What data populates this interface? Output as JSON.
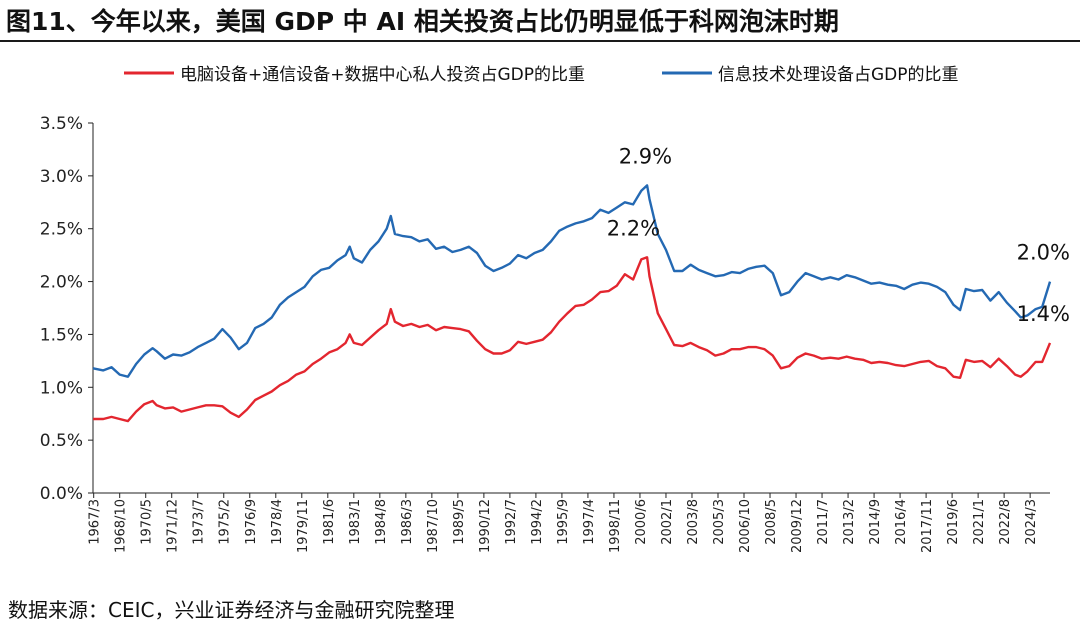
{
  "chart_data": {
    "type": "line",
    "title": "图11、今年以来，美国 GDP 中 AI 相关投资占比仍明显低于科网泡沫时期",
    "source": "数据来源：CEIC，兴业证券经济与金融研究院整理",
    "xlabel": "",
    "ylabel": "",
    "ylim": [
      0.0,
      3.5
    ],
    "yticks": [
      "0.0%",
      "0.5%",
      "1.0%",
      "1.5%",
      "2.0%",
      "2.5%",
      "3.0%",
      "3.5%"
    ],
    "ytick_values": [
      0,
      0.5,
      1.0,
      1.5,
      2.0,
      2.5,
      3.0,
      3.5
    ],
    "x_start": 1967.125,
    "x_end": 2025.375,
    "xticks": [
      "1967/3",
      "1968/10",
      "1970/5",
      "1971/12",
      "1973/7",
      "1975/2",
      "1976/9",
      "1978/4",
      "1979/11",
      "1981/6",
      "1983/1",
      "1984/8",
      "1986/3",
      "1987/10",
      "1989/5",
      "1990/12",
      "1992/7",
      "1994/2",
      "1995/9",
      "1997/4",
      "1998/11",
      "2000/6",
      "2002/1",
      "2003/8",
      "2005/3",
      "2006/10",
      "2008/5",
      "2009/12",
      "2011/7",
      "2013/2",
      "2014/9",
      "2016/4",
      "2017/11",
      "2019/6",
      "2021/1",
      "2022/8",
      "2024/3"
    ],
    "legend_position": "top",
    "grid": false,
    "series": [
      {
        "name": "电脑设备+通信设备+数据中心私人投资占GDP的比重",
        "color": "#e3262f",
        "points": [
          [
            1967.125,
            0.7
          ],
          [
            1967.75,
            0.7
          ],
          [
            1968.25,
            0.72
          ],
          [
            1968.75,
            0.7
          ],
          [
            1969.25,
            0.68
          ],
          [
            1969.75,
            0.77
          ],
          [
            1970.25,
            0.84
          ],
          [
            1970.75,
            0.87
          ],
          [
            1971.0,
            0.83
          ],
          [
            1971.5,
            0.8
          ],
          [
            1972.0,
            0.81
          ],
          [
            1972.5,
            0.77
          ],
          [
            1973.0,
            0.79
          ],
          [
            1973.5,
            0.81
          ],
          [
            1974.0,
            0.83
          ],
          [
            1974.5,
            0.83
          ],
          [
            1975.0,
            0.82
          ],
          [
            1975.5,
            0.76
          ],
          [
            1976.0,
            0.72
          ],
          [
            1976.5,
            0.79
          ],
          [
            1977.0,
            0.88
          ],
          [
            1977.5,
            0.92
          ],
          [
            1978.0,
            0.96
          ],
          [
            1978.5,
            1.02
          ],
          [
            1979.0,
            1.06
          ],
          [
            1979.5,
            1.12
          ],
          [
            1980.0,
            1.15
          ],
          [
            1980.5,
            1.22
          ],
          [
            1981.0,
            1.27
          ],
          [
            1981.5,
            1.33
          ],
          [
            1982.0,
            1.36
          ],
          [
            1982.5,
            1.42
          ],
          [
            1982.75,
            1.5
          ],
          [
            1983.0,
            1.42
          ],
          [
            1983.5,
            1.4
          ],
          [
            1984.0,
            1.47
          ],
          [
            1984.5,
            1.54
          ],
          [
            1985.0,
            1.6
          ],
          [
            1985.25,
            1.74
          ],
          [
            1985.5,
            1.62
          ],
          [
            1986.0,
            1.58
          ],
          [
            1986.5,
            1.6
          ],
          [
            1987.0,
            1.57
          ],
          [
            1987.5,
            1.59
          ],
          [
            1988.0,
            1.54
          ],
          [
            1988.5,
            1.57
          ],
          [
            1989.0,
            1.56
          ],
          [
            1989.5,
            1.55
          ],
          [
            1990.0,
            1.53
          ],
          [
            1990.5,
            1.44
          ],
          [
            1991.0,
            1.36
          ],
          [
            1991.5,
            1.32
          ],
          [
            1992.0,
            1.32
          ],
          [
            1992.5,
            1.35
          ],
          [
            1993.0,
            1.43
          ],
          [
            1993.5,
            1.41
          ],
          [
            1994.0,
            1.43
          ],
          [
            1994.5,
            1.45
          ],
          [
            1995.0,
            1.52
          ],
          [
            1995.5,
            1.62
          ],
          [
            1996.0,
            1.7
          ],
          [
            1996.5,
            1.77
          ],
          [
            1997.0,
            1.78
          ],
          [
            1997.5,
            1.83
          ],
          [
            1998.0,
            1.9
          ],
          [
            1998.5,
            1.91
          ],
          [
            1999.0,
            1.96
          ],
          [
            1999.5,
            2.07
          ],
          [
            2000.0,
            2.02
          ],
          [
            2000.5,
            2.21
          ],
          [
            2000.85,
            2.23
          ],
          [
            2001.0,
            2.05
          ],
          [
            2001.5,
            1.7
          ],
          [
            2002.0,
            1.55
          ],
          [
            2002.5,
            1.4
          ],
          [
            2003.0,
            1.39
          ],
          [
            2003.5,
            1.42
          ],
          [
            2004.0,
            1.38
          ],
          [
            2004.5,
            1.35
          ],
          [
            2005.0,
            1.3
          ],
          [
            2005.5,
            1.32
          ],
          [
            2006.0,
            1.36
          ],
          [
            2006.5,
            1.36
          ],
          [
            2007.0,
            1.38
          ],
          [
            2007.5,
            1.38
          ],
          [
            2008.0,
            1.36
          ],
          [
            2008.5,
            1.3
          ],
          [
            2009.0,
            1.18
          ],
          [
            2009.5,
            1.2
          ],
          [
            2010.0,
            1.28
          ],
          [
            2010.5,
            1.32
          ],
          [
            2011.0,
            1.3
          ],
          [
            2011.5,
            1.27
          ],
          [
            2012.0,
            1.28
          ],
          [
            2012.5,
            1.27
          ],
          [
            2013.0,
            1.29
          ],
          [
            2013.5,
            1.27
          ],
          [
            2014.0,
            1.26
          ],
          [
            2014.5,
            1.23
          ],
          [
            2015.0,
            1.24
          ],
          [
            2015.5,
            1.23
          ],
          [
            2016.0,
            1.21
          ],
          [
            2016.5,
            1.2
          ],
          [
            2017.0,
            1.22
          ],
          [
            2017.5,
            1.24
          ],
          [
            2018.0,
            1.25
          ],
          [
            2018.5,
            1.2
          ],
          [
            2019.0,
            1.18
          ],
          [
            2019.5,
            1.1
          ],
          [
            2019.9,
            1.09
          ],
          [
            2020.25,
            1.26
          ],
          [
            2020.75,
            1.24
          ],
          [
            2021.25,
            1.25
          ],
          [
            2021.75,
            1.19
          ],
          [
            2022.25,
            1.27
          ],
          [
            2022.75,
            1.2
          ],
          [
            2023.25,
            1.12
          ],
          [
            2023.6,
            1.1
          ],
          [
            2024.0,
            1.15
          ],
          [
            2024.5,
            1.24
          ],
          [
            2024.9,
            1.24
          ],
          [
            2025.375,
            1.42
          ]
        ],
        "annotations": [
          {
            "label": "2.2%",
            "x": 2000.75,
            "y": 2.23
          },
          {
            "label": "1.4%",
            "x": 2025.375,
            "y": 1.42
          }
        ]
      },
      {
        "name": "信息技术处理设备占GDP的比重",
        "color": "#2469b3",
        "points": [
          [
            1967.125,
            1.18
          ],
          [
            1967.75,
            1.16
          ],
          [
            1968.25,
            1.19
          ],
          [
            1968.75,
            1.12
          ],
          [
            1969.25,
            1.1
          ],
          [
            1969.75,
            1.22
          ],
          [
            1970.25,
            1.31
          ],
          [
            1970.75,
            1.37
          ],
          [
            1971.0,
            1.34
          ],
          [
            1971.5,
            1.27
          ],
          [
            1972.0,
            1.31
          ],
          [
            1972.5,
            1.3
          ],
          [
            1973.0,
            1.33
          ],
          [
            1973.5,
            1.38
          ],
          [
            1974.0,
            1.42
          ],
          [
            1974.5,
            1.46
          ],
          [
            1975.0,
            1.55
          ],
          [
            1975.5,
            1.47
          ],
          [
            1976.0,
            1.36
          ],
          [
            1976.5,
            1.42
          ],
          [
            1977.0,
            1.56
          ],
          [
            1977.5,
            1.6
          ],
          [
            1978.0,
            1.66
          ],
          [
            1978.5,
            1.78
          ],
          [
            1979.0,
            1.85
          ],
          [
            1979.5,
            1.9
          ],
          [
            1980.0,
            1.95
          ],
          [
            1980.5,
            2.05
          ],
          [
            1981.0,
            2.11
          ],
          [
            1981.5,
            2.13
          ],
          [
            1982.0,
            2.2
          ],
          [
            1982.5,
            2.25
          ],
          [
            1982.75,
            2.33
          ],
          [
            1983.0,
            2.22
          ],
          [
            1983.5,
            2.18
          ],
          [
            1984.0,
            2.3
          ],
          [
            1984.5,
            2.38
          ],
          [
            1985.0,
            2.5
          ],
          [
            1985.25,
            2.62
          ],
          [
            1985.5,
            2.45
          ],
          [
            1986.0,
            2.43
          ],
          [
            1986.5,
            2.42
          ],
          [
            1987.0,
            2.38
          ],
          [
            1987.5,
            2.4
          ],
          [
            1988.0,
            2.31
          ],
          [
            1988.5,
            2.33
          ],
          [
            1989.0,
            2.28
          ],
          [
            1989.5,
            2.3
          ],
          [
            1990.0,
            2.33
          ],
          [
            1990.5,
            2.27
          ],
          [
            1991.0,
            2.15
          ],
          [
            1991.5,
            2.1
          ],
          [
            1992.0,
            2.13
          ],
          [
            1992.5,
            2.17
          ],
          [
            1993.0,
            2.25
          ],
          [
            1993.5,
            2.22
          ],
          [
            1994.0,
            2.27
          ],
          [
            1994.5,
            2.3
          ],
          [
            1995.0,
            2.38
          ],
          [
            1995.5,
            2.48
          ],
          [
            1996.0,
            2.52
          ],
          [
            1996.5,
            2.55
          ],
          [
            1997.0,
            2.57
          ],
          [
            1997.5,
            2.6
          ],
          [
            1998.0,
            2.68
          ],
          [
            1998.5,
            2.65
          ],
          [
            1999.0,
            2.7
          ],
          [
            1999.5,
            2.75
          ],
          [
            2000.0,
            2.73
          ],
          [
            2000.5,
            2.86
          ],
          [
            2000.85,
            2.91
          ],
          [
            2001.0,
            2.78
          ],
          [
            2001.5,
            2.45
          ],
          [
            2002.0,
            2.3
          ],
          [
            2002.5,
            2.1
          ],
          [
            2003.0,
            2.1
          ],
          [
            2003.5,
            2.16
          ],
          [
            2004.0,
            2.11
          ],
          [
            2004.5,
            2.08
          ],
          [
            2005.0,
            2.05
          ],
          [
            2005.5,
            2.06
          ],
          [
            2006.0,
            2.09
          ],
          [
            2006.5,
            2.08
          ],
          [
            2007.0,
            2.12
          ],
          [
            2007.5,
            2.14
          ],
          [
            2008.0,
            2.15
          ],
          [
            2008.5,
            2.08
          ],
          [
            2009.0,
            1.87
          ],
          [
            2009.5,
            1.9
          ],
          [
            2010.0,
            2.0
          ],
          [
            2010.5,
            2.08
          ],
          [
            2011.0,
            2.05
          ],
          [
            2011.5,
            2.02
          ],
          [
            2012.0,
            2.04
          ],
          [
            2012.5,
            2.02
          ],
          [
            2013.0,
            2.06
          ],
          [
            2013.5,
            2.04
          ],
          [
            2014.0,
            2.01
          ],
          [
            2014.5,
            1.98
          ],
          [
            2015.0,
            1.99
          ],
          [
            2015.5,
            1.97
          ],
          [
            2016.0,
            1.96
          ],
          [
            2016.5,
            1.93
          ],
          [
            2017.0,
            1.97
          ],
          [
            2017.5,
            1.99
          ],
          [
            2018.0,
            1.98
          ],
          [
            2018.5,
            1.95
          ],
          [
            2019.0,
            1.9
          ],
          [
            2019.5,
            1.78
          ],
          [
            2019.9,
            1.73
          ],
          [
            2020.25,
            1.93
          ],
          [
            2020.75,
            1.91
          ],
          [
            2021.25,
            1.92
          ],
          [
            2021.75,
            1.82
          ],
          [
            2022.25,
            1.9
          ],
          [
            2022.75,
            1.8
          ],
          [
            2023.25,
            1.72
          ],
          [
            2023.6,
            1.66
          ],
          [
            2024.0,
            1.68
          ],
          [
            2024.5,
            1.74
          ],
          [
            2024.9,
            1.76
          ],
          [
            2025.375,
            2.0
          ]
        ],
        "annotations": [
          {
            "label": "2.9%",
            "x": 2000.75,
            "y": 2.91
          },
          {
            "label": "2.0%",
            "x": 2025.375,
            "y": 2.0
          }
        ]
      }
    ]
  }
}
